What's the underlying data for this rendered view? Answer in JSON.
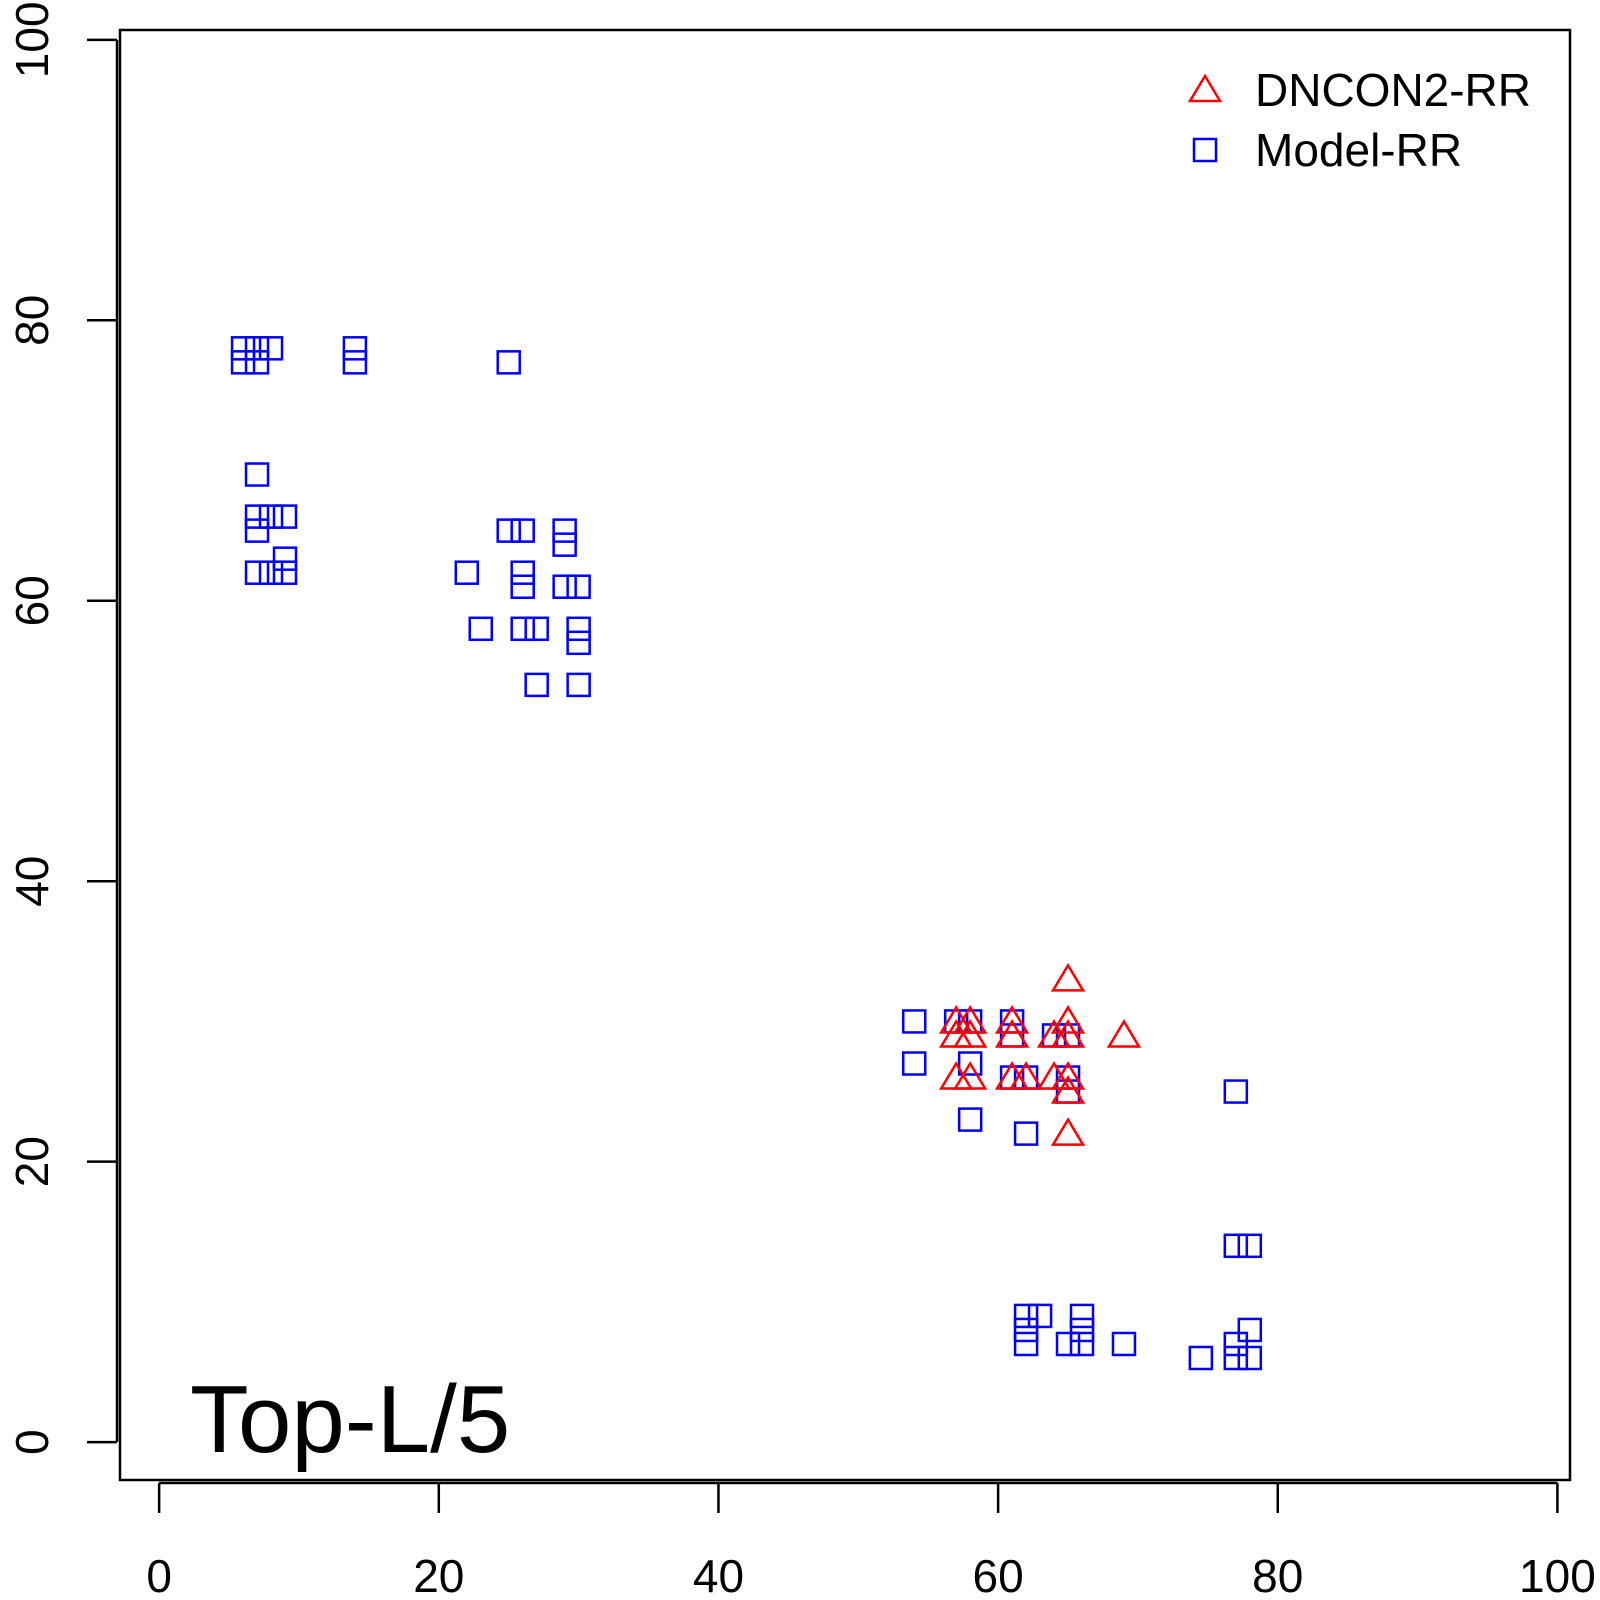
{
  "chart_data": {
    "type": "scatter",
    "annotation": "Top-L/5",
    "xlim": [
      -2.8,
      100.9
    ],
    "ylim": [
      100.7,
      -2.7
    ],
    "x_axis": {
      "ticks": [
        0,
        20,
        40,
        60,
        80,
        100
      ]
    },
    "y_axis": {
      "ticks": [
        0,
        20,
        40,
        60,
        80,
        100
      ]
    },
    "legend_position": "top-right",
    "series": [
      {
        "name": "DNCON2-RR",
        "marker": "triangle-open",
        "color": "#ff0000",
        "points": [
          [
            57,
            26
          ],
          [
            58,
            26
          ],
          [
            61,
            26
          ],
          [
            62,
            26
          ],
          [
            64,
            26
          ],
          [
            65,
            26
          ],
          [
            65,
            25
          ],
          [
            65,
            22
          ],
          [
            57,
            29
          ],
          [
            58,
            29
          ],
          [
            61,
            29
          ],
          [
            64,
            29
          ],
          [
            65,
            29
          ],
          [
            69,
            29
          ],
          [
            57,
            30
          ],
          [
            58,
            30
          ],
          [
            61,
            30
          ],
          [
            65,
            30
          ],
          [
            65,
            33
          ]
        ]
      },
      {
        "name": "Model-RR",
        "marker": "square-open",
        "color": "#0000ff",
        "points": [
          [
            74.5,
            6
          ],
          [
            77,
            6
          ],
          [
            78,
            6
          ],
          [
            62,
            7
          ],
          [
            65,
            7
          ],
          [
            66,
            7
          ],
          [
            69,
            7
          ],
          [
            77,
            7
          ],
          [
            62,
            8
          ],
          [
            66,
            8
          ],
          [
            78,
            8
          ],
          [
            62,
            9
          ],
          [
            63,
            9
          ],
          [
            66,
            9
          ],
          [
            77,
            14
          ],
          [
            78,
            14
          ],
          [
            62,
            22
          ],
          [
            58,
            23
          ],
          [
            77,
            25
          ],
          [
            65,
            25
          ],
          [
            61,
            26
          ],
          [
            62,
            26
          ],
          [
            65,
            26
          ],
          [
            54,
            27
          ],
          [
            58,
            27
          ],
          [
            61,
            29
          ],
          [
            64,
            29
          ],
          [
            65,
            29
          ],
          [
            54,
            30
          ],
          [
            57,
            30
          ],
          [
            58,
            30
          ],
          [
            61,
            30
          ],
          [
            27,
            54
          ],
          [
            30,
            54
          ],
          [
            30,
            57
          ],
          [
            23,
            58
          ],
          [
            26,
            58
          ],
          [
            27,
            58
          ],
          [
            30,
            58
          ],
          [
            26,
            61
          ],
          [
            29,
            61
          ],
          [
            30,
            61
          ],
          [
            7,
            62
          ],
          [
            8,
            62
          ],
          [
            9,
            62
          ],
          [
            22,
            62
          ],
          [
            26,
            62
          ],
          [
            9,
            63
          ],
          [
            29,
            64
          ],
          [
            7,
            65
          ],
          [
            25,
            65
          ],
          [
            26,
            65
          ],
          [
            29,
            65
          ],
          [
            7,
            66
          ],
          [
            8,
            66
          ],
          [
            9,
            66
          ],
          [
            7,
            69
          ],
          [
            6,
            77
          ],
          [
            7,
            77
          ],
          [
            14,
            77
          ],
          [
            25,
            77
          ],
          [
            6,
            78
          ],
          [
            7,
            78
          ],
          [
            8,
            78
          ],
          [
            14,
            78
          ]
        ]
      }
    ]
  }
}
